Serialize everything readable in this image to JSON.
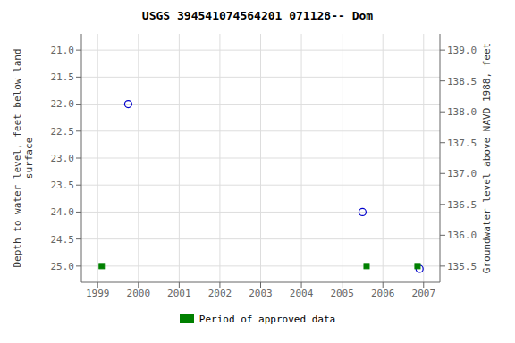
{
  "chart_data": {
    "type": "scatter",
    "title": "USGS 394541074564201 071128-- Dom",
    "y_label": "Depth to water level, feet below land\nsurface",
    "y2_label": "Groundwater level above NAVD 1988, feet",
    "xlim": [
      1998.6,
      2007.4
    ],
    "xticks": [
      1999,
      2000,
      2001,
      2002,
      2003,
      2004,
      2005,
      2006,
      2007
    ],
    "ylim": [
      25.3,
      20.7
    ],
    "yticks": [
      {
        "value": 21.0,
        "label": "21.0"
      },
      21.5,
      {
        "value": 22.0,
        "label": "22.0"
      },
      22.5,
      {
        "value": 23.0,
        "label": "23.0"
      },
      23.5,
      {
        "value": 24.0,
        "label": "24.0"
      },
      24.5,
      {
        "value": 25.0,
        "label": "25.0"
      }
    ],
    "y2lim": [
      135.2375,
      139.2625
    ],
    "y2ticks": [
      {
        "value": 139.0,
        "label": "139.0"
      },
      138.5,
      {
        "value": 138.0,
        "label": "138.0"
      },
      137.5,
      {
        "value": 137.0,
        "label": "137.0"
      },
      136.5,
      {
        "value": 136.0,
        "label": "136.0"
      },
      135.5
    ],
    "grid": true,
    "legend": "bottom",
    "series": [
      {
        "x": [
          1999.75,
          2005.5,
          2006.9
        ],
        "values": [
          22.0,
          24.0,
          25.05
        ],
        "color": "#0000cc",
        "marker": "circle"
      },
      {
        "name": "Period of approved data",
        "x": [
          1999.1,
          2005.6,
          2006.85
        ],
        "values": [
          25.0,
          25.0,
          25.0
        ],
        "color": "#008000",
        "marker": "square"
      }
    ]
  }
}
